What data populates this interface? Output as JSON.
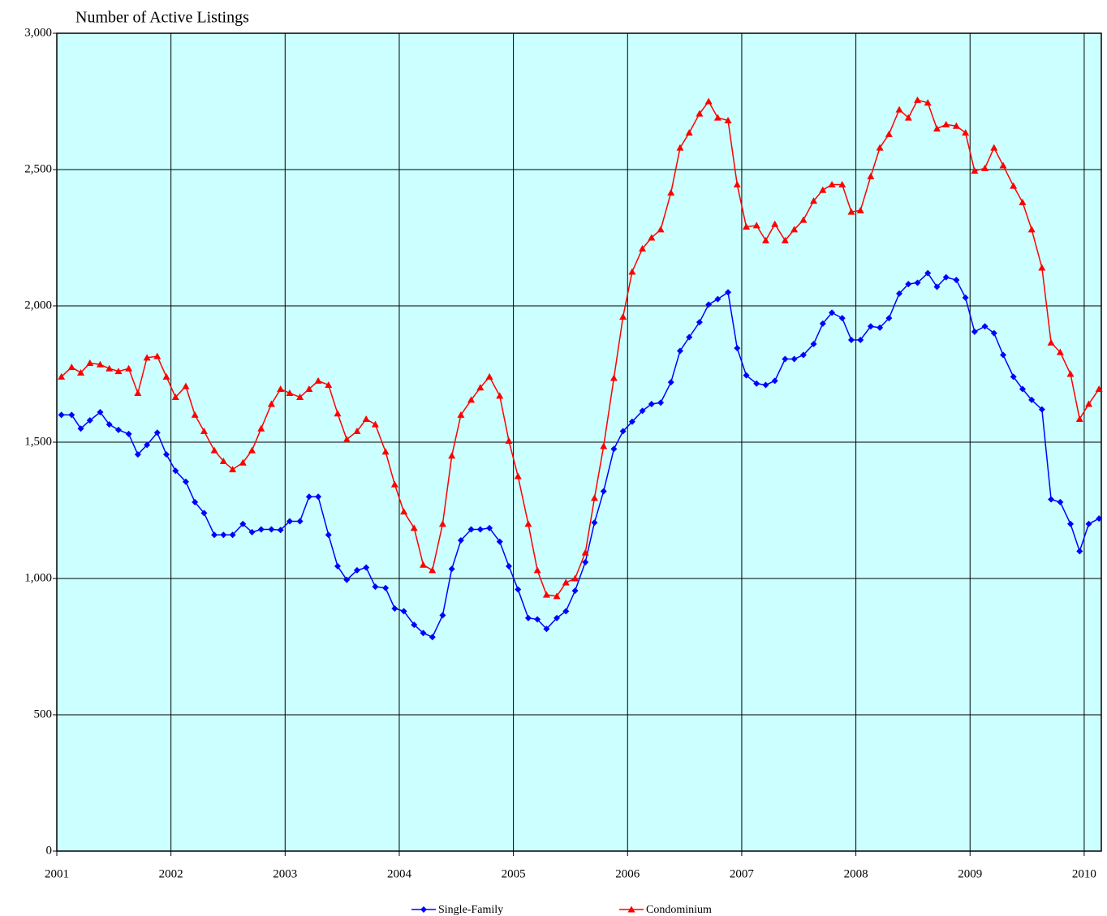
{
  "chart_data": {
    "type": "line",
    "title": "Number of Active Listings",
    "x": [
      2001.04,
      2001.13,
      2001.21,
      2001.29,
      2001.38,
      2001.46,
      2001.54,
      2001.63,
      2001.71,
      2001.79,
      2001.88,
      2001.96,
      2002.04,
      2002.13,
      2002.21,
      2002.29,
      2002.38,
      2002.46,
      2002.54,
      2002.63,
      2002.71,
      2002.79,
      2002.88,
      2002.96,
      2003.04,
      2003.13,
      2003.21,
      2003.29,
      2003.38,
      2003.46,
      2003.54,
      2003.63,
      2003.71,
      2003.79,
      2003.88,
      2003.96,
      2004.04,
      2004.13,
      2004.21,
      2004.29,
      2004.38,
      2004.46,
      2004.54,
      2004.63,
      2004.71,
      2004.79,
      2004.88,
      2004.96,
      2005.04,
      2005.13,
      2005.21,
      2005.29,
      2005.38,
      2005.46,
      2005.54,
      2005.63,
      2005.71,
      2005.79,
      2005.88,
      2005.96,
      2006.04,
      2006.13,
      2006.21,
      2006.29,
      2006.38,
      2006.46,
      2006.54,
      2006.63,
      2006.71,
      2006.79,
      2006.88,
      2006.96,
      2007.04,
      2007.13,
      2007.21,
      2007.29,
      2007.38,
      2007.46,
      2007.54,
      2007.63,
      2007.71,
      2007.79,
      2007.88,
      2007.96,
      2008.04,
      2008.13,
      2008.21,
      2008.29,
      2008.38,
      2008.46,
      2008.54,
      2008.63,
      2008.71,
      2008.79,
      2008.88,
      2008.96,
      2009.04,
      2009.13,
      2009.21,
      2009.29,
      2009.38,
      2009.46,
      2009.54,
      2009.63,
      2009.71,
      2009.79,
      2009.88,
      2009.96,
      2010.04,
      2010.13
    ],
    "series": [
      {
        "name": "Single-Family",
        "color": "#0000ff",
        "marker": "diamond",
        "values": [
          1600,
          1600,
          1550,
          1580,
          1610,
          1565,
          1545,
          1530,
          1455,
          1490,
          1535,
          1455,
          1395,
          1355,
          1280,
          1240,
          1160,
          1160,
          1160,
          1200,
          1170,
          1180,
          1180,
          1178,
          1210,
          1210,
          1300,
          1300,
          1160,
          1045,
          995,
          1030,
          1040,
          970,
          965,
          890,
          880,
          830,
          800,
          785,
          865,
          1035,
          1140,
          1180,
          1180,
          1185,
          1135,
          1045,
          960,
          855,
          850,
          815,
          855,
          880,
          955,
          1060,
          1205,
          1320,
          1475,
          1540,
          1575,
          1615,
          1640,
          1645,
          1720,
          1835,
          1885,
          1940,
          2005,
          2025,
          2050,
          1845,
          1745,
          1715,
          1710,
          1725,
          1805,
          1805,
          1820,
          1860,
          1935,
          1975,
          1955,
          1875,
          1875,
          1925,
          1920,
          1955,
          2045,
          2080,
          2085,
          2120,
          2070,
          2105,
          2095,
          2030,
          1905,
          1925,
          1900,
          1820,
          1740,
          1695,
          1655,
          1620,
          1290,
          1280,
          1200,
          1100,
          1200,
          1220
        ]
      },
      {
        "name": "Condominium",
        "color": "#ff0000",
        "marker": "triangle",
        "values": [
          1740,
          1775,
          1755,
          1790,
          1785,
          1770,
          1760,
          1770,
          1680,
          1810,
          1815,
          1740,
          1665,
          1705,
          1600,
          1540,
          1470,
          1430,
          1400,
          1425,
          1470,
          1550,
          1640,
          1695,
          1680,
          1665,
          1695,
          1725,
          1710,
          1605,
          1510,
          1540,
          1585,
          1565,
          1465,
          1345,
          1245,
          1185,
          1050,
          1030,
          1200,
          1450,
          1600,
          1655,
          1700,
          1740,
          1670,
          1505,
          1375,
          1200,
          1030,
          940,
          935,
          985,
          1000,
          1095,
          1295,
          1485,
          1735,
          1960,
          2125,
          2210,
          2250,
          2280,
          2415,
          2580,
          2635,
          2705,
          2750,
          2690,
          2680,
          2445,
          2290,
          2295,
          2240,
          2300,
          2240,
          2280,
          2315,
          2385,
          2425,
          2445,
          2445,
          2345,
          2350,
          2475,
          2580,
          2630,
          2720,
          2690,
          2755,
          2745,
          2650,
          2665,
          2660,
          2635,
          2495,
          2505,
          2580,
          2515,
          2440,
          2380,
          2280,
          2140,
          1865,
          1830,
          1750,
          1585,
          1640,
          1695
        ]
      }
    ],
    "xlim": [
      2001,
      2010.15
    ],
    "xticks": [
      2001,
      2002,
      2003,
      2004,
      2005,
      2006,
      2007,
      2008,
      2009,
      2010
    ],
    "ylim": [
      0,
      3000
    ],
    "yticks": [
      0,
      500,
      {
        "value": 1000,
        "label": "1,000"
      },
      {
        "value": 1500,
        "label": "1,500"
      },
      {
        "value": 2000,
        "label": "2,000"
      },
      {
        "value": 2500,
        "label": "2,500"
      },
      {
        "value": 3000,
        "label": "3,000"
      }
    ],
    "grid": true,
    "background": "#ccffff",
    "legend": "bottom"
  }
}
